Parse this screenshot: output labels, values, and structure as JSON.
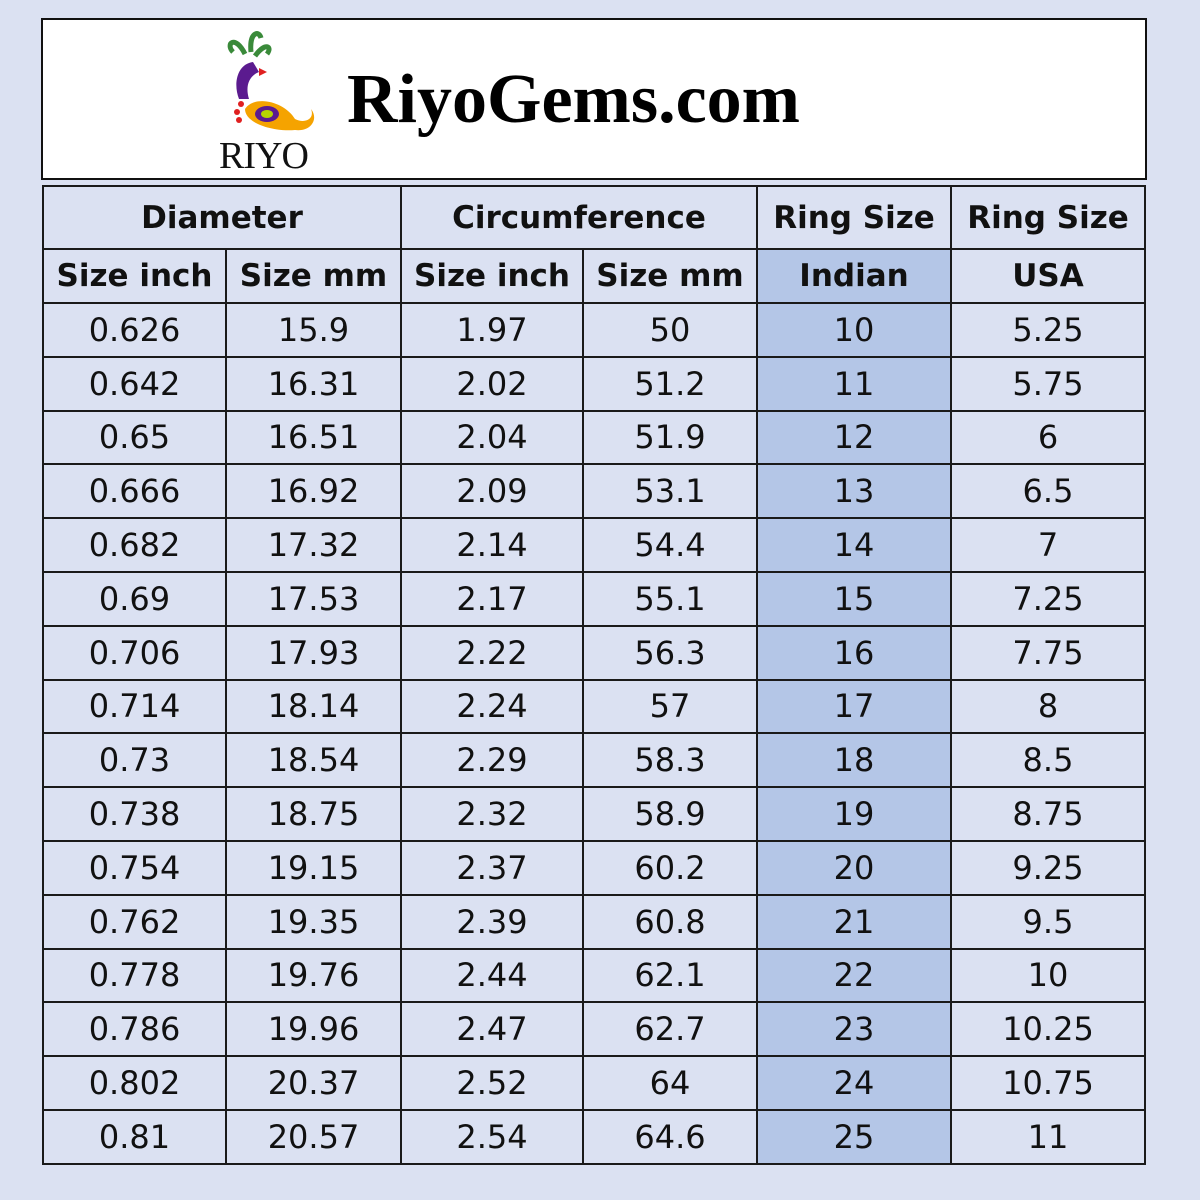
{
  "brand": {
    "logo_text": "RIYO",
    "site_name": "RiyoGems.com"
  },
  "colors": {
    "background": "#dbe1f2",
    "highlight": "#b4c6e7",
    "border": "#1a1a1a"
  },
  "table": {
    "group_headers": [
      "Diameter",
      "Circumference",
      "Ring Size",
      "Ring Size"
    ],
    "sub_headers": [
      "Size inch",
      "Size mm",
      "Size inch",
      "Size mm",
      "Indian",
      "USA"
    ],
    "rows": [
      [
        "0.626",
        "15.9",
        "1.97",
        "50",
        "10",
        "5.25"
      ],
      [
        "0.642",
        "16.31",
        "2.02",
        "51.2",
        "11",
        "5.75"
      ],
      [
        "0.65",
        "16.51",
        "2.04",
        "51.9",
        "12",
        "6"
      ],
      [
        "0.666",
        "16.92",
        "2.09",
        "53.1",
        "13",
        "6.5"
      ],
      [
        "0.682",
        "17.32",
        "2.14",
        "54.4",
        "14",
        "7"
      ],
      [
        "0.69",
        "17.53",
        "2.17",
        "55.1",
        "15",
        "7.25"
      ],
      [
        "0.706",
        "17.93",
        "2.22",
        "56.3",
        "16",
        "7.75"
      ],
      [
        "0.714",
        "18.14",
        "2.24",
        "57",
        "17",
        "8"
      ],
      [
        "0.73",
        "18.54",
        "2.29",
        "58.3",
        "18",
        "8.5"
      ],
      [
        "0.738",
        "18.75",
        "2.32",
        "58.9",
        "19",
        "8.75"
      ],
      [
        "0.754",
        "19.15",
        "2.37",
        "60.2",
        "20",
        "9.25"
      ],
      [
        "0.762",
        "19.35",
        "2.39",
        "60.8",
        "21",
        "9.5"
      ],
      [
        "0.778",
        "19.76",
        "2.44",
        "62.1",
        "22",
        "10"
      ],
      [
        "0.786",
        "19.96",
        "2.47",
        "62.7",
        "23",
        "10.25"
      ],
      [
        "0.802",
        "20.37",
        "2.52",
        "64",
        "24",
        "10.75"
      ],
      [
        "0.81",
        "20.57",
        "2.54",
        "64.6",
        "25",
        "11"
      ]
    ]
  }
}
